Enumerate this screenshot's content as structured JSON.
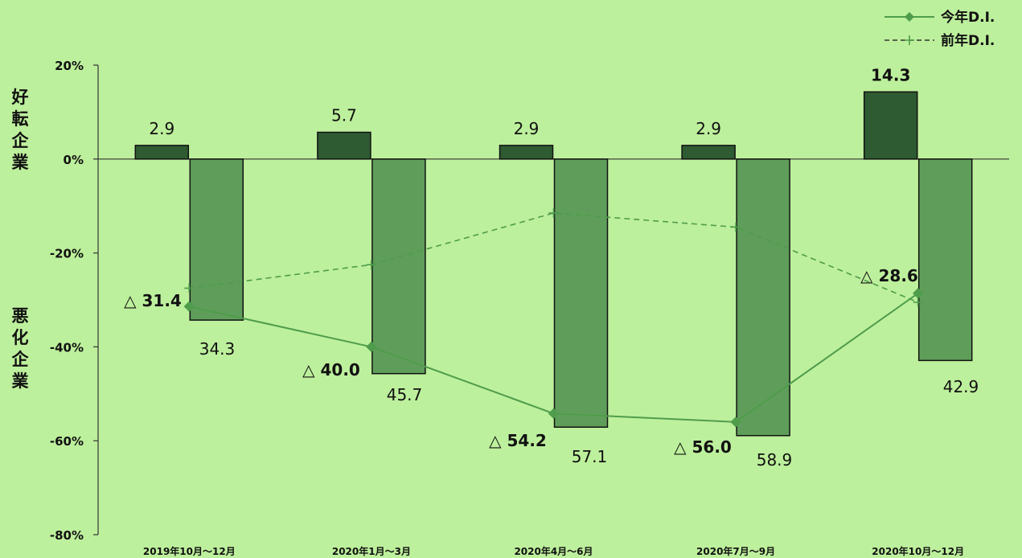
{
  "chart_data": {
    "type": "bar",
    "categories": [
      "2019年10月～12月",
      "2020年1月～3月",
      "2020年4月～6月",
      "2020年7月～9月",
      "2020年10月～12月"
    ],
    "series": [
      {
        "role": "improve-bar",
        "values": [
          2.9,
          5.7,
          2.9,
          2.9,
          14.3
        ],
        "labels": [
          "2.9",
          "5.7",
          "2.9",
          "2.9",
          "14.3"
        ],
        "color": "#2e5b32"
      },
      {
        "role": "worsen-bar",
        "values": [
          -34.3,
          -45.7,
          -57.1,
          -58.9,
          -42.9
        ],
        "labels": [
          "34.3",
          "45.7",
          "57.1",
          "58.9",
          "42.9"
        ],
        "color": "#5f9e5a"
      },
      {
        "name": "今年D.I.",
        "type": "line",
        "values": [
          -31.4,
          -40.0,
          -54.2,
          -56.0,
          -28.6
        ],
        "labels": [
          "△ 31.4",
          "△ 40.0",
          "△ 54.2",
          "△ 56.0",
          "△ 28.6"
        ],
        "color": "#4f9c4c"
      },
      {
        "name": "前年D.I.",
        "type": "line",
        "dashed": true,
        "values": [
          -27.5,
          -22.5,
          -11.5,
          -14.5,
          -30.5
        ],
        "color": "#4f9c4c"
      }
    ],
    "yticks": [
      "20%",
      "0%",
      "-20%",
      "-40%",
      "-60%",
      "-80%"
    ],
    "ylim": [
      -80,
      20
    ],
    "side_labels": {
      "top": "好転企業",
      "bottom": "悪化企業"
    },
    "legend_position": "top-right",
    "grid": false
  }
}
